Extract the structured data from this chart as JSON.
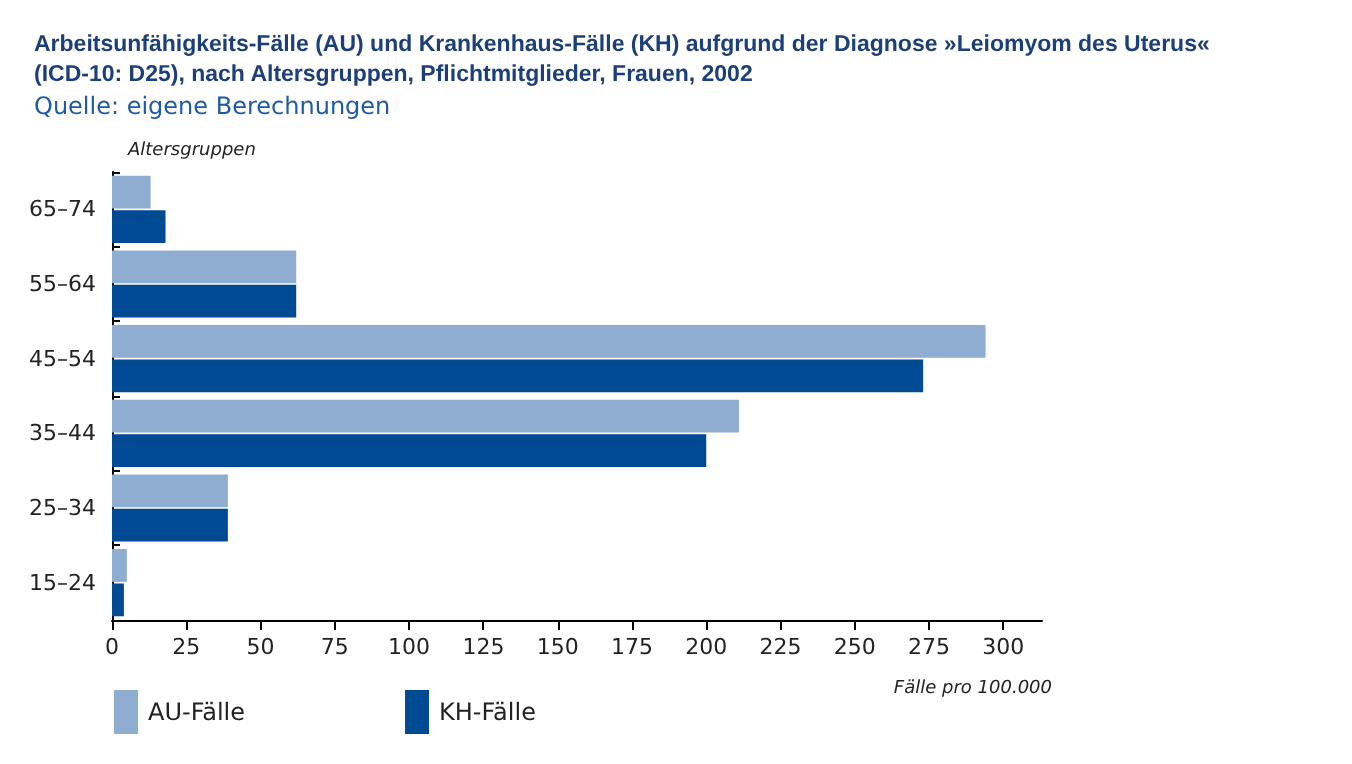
{
  "chart_data": {
    "type": "bar",
    "orientation": "horizontal",
    "title": "Arbeitsunfähigkeits-Fälle (AU) und Krankenhaus-Fälle (KH) aufgrund der Diagnose »Leiomyom des Uterus«\n(ICD-10: D25), nach Altersgruppen, Pflichtmitglieder, Frauen, 2002",
    "subtitle": "Quelle: eigene Berechnungen",
    "ylabel": "Altersgruppen",
    "xlabel": "Fälle pro 100.000",
    "categories": [
      "65–74",
      "55–64",
      "45–54",
      "35–44",
      "25–34",
      "15–24"
    ],
    "series": [
      {
        "name": "AU-Fälle",
        "color": "#8eadd0",
        "values": [
          13,
          62,
          294,
          211,
          39,
          5
        ]
      },
      {
        "name": "KH-Fälle",
        "color": "#004a94",
        "values": [
          18,
          62,
          273,
          200,
          39,
          4
        ]
      }
    ],
    "xlim": [
      0,
      313
    ],
    "xticks": [
      0,
      25,
      50,
      75,
      100,
      125,
      150,
      175,
      200,
      225,
      250,
      275,
      300
    ],
    "grid": false,
    "legend": "bottom left"
  }
}
